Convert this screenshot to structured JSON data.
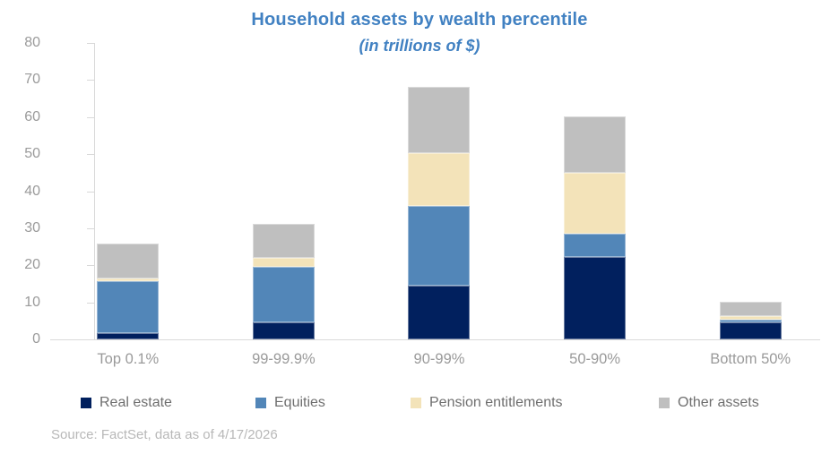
{
  "title": "Household assets by wealth percentile",
  "subtitle": "(in trillions of $)",
  "source_note": "Source: FactSet, data as of 4/17/2026",
  "colors": {
    "title_text": "#4181c2",
    "axis_line": "#d9d9d9",
    "axis_label_text": "#9a9a9a",
    "legend_text": "#6f6f6f",
    "source_text": "#b8b8b8",
    "real_estate": "#01205e",
    "equities": "#5286b8",
    "pension_entitlements": "#f3e3b9",
    "other_assets": "#bfbfbf"
  },
  "chart_data": {
    "type": "bar",
    "stacked": true,
    "title": "Household assets by wealth percentile",
    "subtitle": "(in trillions of $)",
    "categories": [
      "Top 0.1%",
      "99-99.9%",
      "90-99%",
      "50-90%",
      "Bottom 50%"
    ],
    "series": [
      {
        "name": "Real estate",
        "color": "#01205e",
        "values": [
          1.8,
          4.5,
          14.4,
          22.3,
          4.7
        ]
      },
      {
        "name": "Equities",
        "color": "#5286b8",
        "values": [
          14.0,
          15.0,
          21.6,
          6.3,
          0.6
        ]
      },
      {
        "name": "Pension entitlements",
        "color": "#f3e3b9",
        "values": [
          0.7,
          2.6,
          14.3,
          16.3,
          1.1
        ]
      },
      {
        "name": "Other assets",
        "color": "#bfbfbf",
        "values": [
          9.3,
          9.1,
          17.8,
          15.3,
          3.8
        ]
      }
    ],
    "totals": [
      25.8,
      31.2,
      68.1,
      60.2,
      10.2
    ],
    "xlabel": "",
    "ylabel": "",
    "ylim": [
      0,
      80
    ],
    "yticks": [
      0,
      10,
      20,
      30,
      40,
      50,
      60,
      70,
      80
    ],
    "grid": false,
    "legend_position": "bottom"
  }
}
